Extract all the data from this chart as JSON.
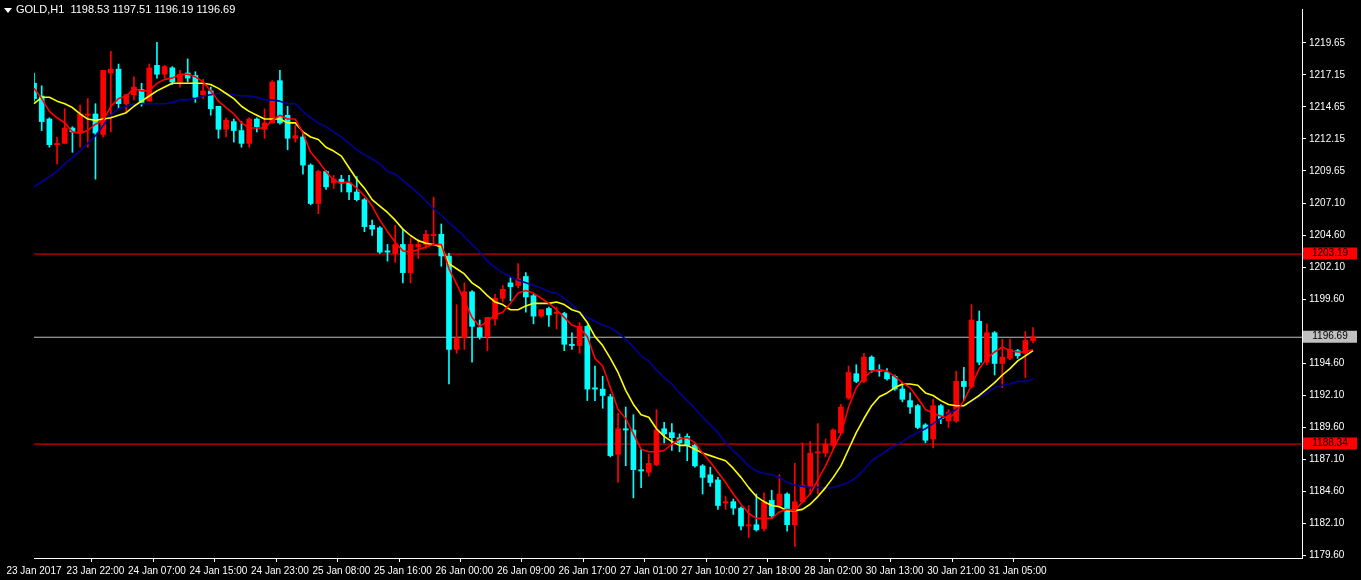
{
  "chart_data": {
    "type": "candlestick",
    "title": "GOLD,H1  1198.53 1197.51 1196.19 1196.69",
    "categories": [
      "23 Jan 2017",
      null,
      null,
      null,
      null,
      null,
      null,
      null,
      "23 Jan 22:00",
      null,
      null,
      null,
      null,
      null,
      null,
      null,
      "24 Jan 07:00",
      null,
      null,
      null,
      null,
      null,
      null,
      null,
      "24 Jan 15:00",
      null,
      null,
      null,
      null,
      null,
      null,
      null,
      "24 Jan 23:00",
      null,
      null,
      null,
      null,
      null,
      null,
      null,
      "25 Jan 08:00",
      null,
      null,
      null,
      null,
      null,
      null,
      null,
      "25 Jan 16:00",
      null,
      null,
      null,
      null,
      null,
      null,
      null,
      "26 Jan 00:00",
      null,
      null,
      null,
      null,
      null,
      null,
      null,
      "26 Jan 09:00",
      null,
      null,
      null,
      null,
      null,
      null,
      null,
      "26 Jan 17:00",
      null,
      null,
      null,
      null,
      null,
      null,
      null,
      "27 Jan 01:00",
      null,
      null,
      null,
      null,
      null,
      null,
      null,
      "27 Jan 10:00",
      null,
      null,
      null,
      null,
      null,
      null,
      null,
      "27 Jan 18:00",
      null,
      null,
      null,
      null,
      null,
      null,
      null,
      "28 Jan 02:00",
      null,
      null,
      null,
      null,
      null,
      null,
      null,
      "30 Jan 13:00",
      null,
      null,
      null,
      null,
      null,
      null,
      null,
      "30 Jan 21:00",
      null,
      null,
      null,
      null,
      null,
      null,
      null,
      "31 Jan 05:00",
      null,
      null,
      null,
      null,
      null,
      null,
      null,
      null,
      null,
      null,
      null,
      null,
      null,
      null,
      null,
      null,
      null,
      null,
      null,
      null,
      null,
      null,
      null,
      null,
      null,
      null,
      null,
      null,
      null,
      null,
      null,
      null,
      null,
      null,
      null,
      null,
      null
    ],
    "ohlc": [
      [
        1216.5,
        1217.3,
        1215.1,
        1215.3
      ],
      [
        1215.5,
        1216.3,
        1212.8,
        1213.5
      ],
      [
        1213.7,
        1213.8,
        1211.5,
        1211.7
      ],
      [
        1211.7,
        1212.3,
        1210.2,
        1211.8
      ],
      [
        1211.8,
        1214.5,
        1211.8,
        1213.0
      ],
      [
        1213.0,
        1213.1,
        1211.1,
        1212.7
      ],
      [
        1212.6,
        1214.8,
        1211.5,
        1214.1
      ],
      [
        1214.0,
        1215.3,
        1211.5,
        1214.1
      ],
      [
        1214.1,
        1214.9,
        1209.0,
        1212.6
      ],
      [
        1212.5,
        1217.5,
        1212.3,
        1217.5
      ],
      [
        1217.3,
        1219.0,
        1212.7,
        1217.6
      ],
      [
        1217.6,
        1218.0,
        1214.5,
        1214.9
      ],
      [
        1214.9,
        1215.6,
        1214.2,
        1215.6
      ],
      [
        1215.6,
        1217.0,
        1215.2,
        1216.2
      ],
      [
        1216.0,
        1216.5,
        1214.7,
        1215.0
      ],
      [
        1215.1,
        1218.0,
        1215.1,
        1217.7
      ],
      [
        1217.9,
        1219.7,
        1216.9,
        1217.2
      ],
      [
        1217.2,
        1217.9,
        1216.9,
        1217.8
      ],
      [
        1217.7,
        1217.8,
        1216.4,
        1216.6
      ],
      [
        1216.6,
        1217.5,
        1216.2,
        1217.2
      ],
      [
        1217.3,
        1218.4,
        1216.6,
        1216.9
      ],
      [
        1217.1,
        1217.4,
        1215.0,
        1215.4
      ],
      [
        1215.6,
        1216.8,
        1215.3,
        1215.9
      ],
      [
        1215.9,
        1216.2,
        1214.0,
        1214.5
      ],
      [
        1214.7,
        1214.7,
        1212.2,
        1212.9
      ],
      [
        1212.9,
        1213.8,
        1212.3,
        1213.6
      ],
      [
        1213.5,
        1213.7,
        1211.9,
        1212.8
      ],
      [
        1212.8,
        1213.5,
        1211.5,
        1211.8
      ],
      [
        1211.8,
        1213.8,
        1211.5,
        1213.7
      ],
      [
        1213.7,
        1213.8,
        1212.7,
        1213.1
      ],
      [
        1212.9,
        1214.5,
        1212.2,
        1213.4
      ],
      [
        1213.4,
        1216.7,
        1213.4,
        1216.6
      ],
      [
        1216.7,
        1217.5,
        1213.3,
        1213.4
      ],
      [
        1214.0,
        1214.7,
        1211.3,
        1212.2
      ],
      [
        1212.2,
        1213.2,
        1211.9,
        1212.4
      ],
      [
        1212.3,
        1212.6,
        1209.4,
        1210.1
      ],
      [
        1210.1,
        1210.2,
        1207.0,
        1207.1
      ],
      [
        1207.1,
        1209.7,
        1206.3,
        1209.6
      ],
      [
        1209.6,
        1209.7,
        1208.2,
        1208.4
      ],
      [
        1208.7,
        1209.3,
        1208.3,
        1209.0
      ],
      [
        1209.0,
        1209.3,
        1208.0,
        1208.7
      ],
      [
        1208.7,
        1209.3,
        1207.4,
        1208.0
      ],
      [
        1208.0,
        1209.2,
        1207.3,
        1207.4
      ],
      [
        1207.4,
        1207.5,
        1204.9,
        1205.3
      ],
      [
        1205.4,
        1205.8,
        1204.6,
        1205.1
      ],
      [
        1205.2,
        1205.3,
        1203.2,
        1203.3
      ],
      [
        1203.4,
        1203.9,
        1202.6,
        1203.3
      ],
      [
        1203.2,
        1205.4,
        1202.5,
        1203.9
      ],
      [
        1203.9,
        1205.1,
        1200.9,
        1201.7
      ],
      [
        1201.7,
        1204.4,
        1200.9,
        1203.9
      ],
      [
        1203.7,
        1204.3,
        1202.8,
        1203.9
      ],
      [
        1203.9,
        1205.0,
        1203.6,
        1204.7
      ],
      [
        1204.6,
        1207.6,
        1203.9,
        1204.7
      ],
      [
        1204.7,
        1205.5,
        1202.2,
        1203.0
      ],
      [
        1203.0,
        1203.2,
        1193.0,
        1195.7
      ],
      [
        1195.7,
        1199.2,
        1195.4,
        1196.6
      ],
      [
        1196.6,
        1200.9,
        1195.7,
        1200.2
      ],
      [
        1200.2,
        1200.3,
        1194.7,
        1197.5
      ],
      [
        1197.4,
        1198.0,
        1196.5,
        1196.7
      ],
      [
        1196.7,
        1198.2,
        1195.6,
        1198.2
      ],
      [
        1198.1,
        1200.0,
        1197.6,
        1199.7
      ],
      [
        1199.7,
        1200.7,
        1199.4,
        1200.4
      ],
      [
        1200.9,
        1201.3,
        1199.5,
        1200.6
      ],
      [
        1200.7,
        1202.4,
        1200.5,
        1201.2
      ],
      [
        1201.4,
        1201.7,
        1198.6,
        1199.8
      ],
      [
        1199.9,
        1200.0,
        1197.7,
        1198.3
      ],
      [
        1198.3,
        1198.8,
        1198.2,
        1198.8
      ],
      [
        1198.9,
        1199.0,
        1197.5,
        1198.4
      ],
      [
        1198.5,
        1199.0,
        1197.3,
        1198.6
      ],
      [
        1198.5,
        1198.6,
        1195.6,
        1196.1
      ],
      [
        1196.1,
        1197.0,
        1195.7,
        1196.0
      ],
      [
        1196.0,
        1197.8,
        1195.4,
        1197.5
      ],
      [
        1197.5,
        1197.6,
        1191.7,
        1192.6
      ],
      [
        1192.7,
        1194.4,
        1191.7,
        1192.6
      ],
      [
        1192.6,
        1193.6,
        1191.1,
        1192.1
      ],
      [
        1192.0,
        1192.2,
        1187.3,
        1187.4
      ],
      [
        1187.5,
        1190.7,
        1185.3,
        1189.5
      ],
      [
        1189.5,
        1191.2,
        1186.6,
        1189.4
      ],
      [
        1189.4,
        1190.6,
        1184.1,
        1186.3
      ],
      [
        1186.3,
        1187.9,
        1184.9,
        1186.2
      ],
      [
        1186.1,
        1187.5,
        1185.8,
        1186.8
      ],
      [
        1186.7,
        1191.0,
        1186.6,
        1189.4
      ],
      [
        1189.5,
        1190.0,
        1188.4,
        1189.1
      ],
      [
        1189.2,
        1189.9,
        1187.8,
        1188.8
      ],
      [
        1188.8,
        1189.1,
        1187.7,
        1188.4
      ],
      [
        1188.9,
        1189.1,
        1187.0,
        1188.2
      ],
      [
        1188.2,
        1188.3,
        1186.5,
        1186.6
      ],
      [
        1186.6,
        1186.7,
        1184.4,
        1185.7
      ],
      [
        1185.9,
        1186.5,
        1185.0,
        1185.3
      ],
      [
        1185.5,
        1185.7,
        1183.2,
        1183.5
      ],
      [
        1183.7,
        1184.2,
        1183.2,
        1183.8
      ],
      [
        1183.8,
        1184.0,
        1182.8,
        1183.3
      ],
      [
        1183.3,
        1183.4,
        1181.6,
        1181.9
      ],
      [
        1181.9,
        1183.5,
        1181.0,
        1182.0
      ],
      [
        1182.0,
        1184.4,
        1181.5,
        1181.6
      ],
      [
        1181.7,
        1184.5,
        1181.5,
        1183.8
      ],
      [
        1183.9,
        1184.7,
        1182.5,
        1182.7
      ],
      [
        1183.5,
        1185.9,
        1183.3,
        1184.4
      ],
      [
        1184.4,
        1184.5,
        1181.5,
        1182.0
      ],
      [
        1182.0,
        1186.8,
        1180.3,
        1183.8
      ],
      [
        1183.8,
        1188.4,
        1183.7,
        1185.1
      ],
      [
        1185.0,
        1188.5,
        1184.4,
        1187.6
      ],
      [
        1187.6,
        1189.9,
        1184.4,
        1187.7
      ],
      [
        1187.6,
        1188.7,
        1187.3,
        1188.3
      ],
      [
        1188.2,
        1189.5,
        1187.9,
        1189.4
      ],
      [
        1189.2,
        1191.4,
        1189.1,
        1191.2
      ],
      [
        1191.9,
        1194.4,
        1191.8,
        1193.9
      ],
      [
        1193.8,
        1194.5,
        1193.1,
        1193.2
      ],
      [
        1193.2,
        1195.4,
        1193.1,
        1195.1
      ],
      [
        1195.1,
        1195.2,
        1193.9,
        1194.1
      ],
      [
        1194.1,
        1194.5,
        1193.6,
        1194.0
      ],
      [
        1193.9,
        1194.2,
        1193.3,
        1193.4
      ],
      [
        1193.6,
        1193.7,
        1192.5,
        1192.6
      ],
      [
        1192.6,
        1193.0,
        1191.6,
        1191.8
      ],
      [
        1191.7,
        1192.3,
        1190.7,
        1191.2
      ],
      [
        1191.3,
        1191.4,
        1189.5,
        1189.6
      ],
      [
        1189.8,
        1189.9,
        1188.4,
        1188.6
      ],
      [
        1188.7,
        1191.8,
        1188.0,
        1191.3
      ],
      [
        1191.3,
        1191.4,
        1189.9,
        1190.3
      ],
      [
        1190.1,
        1191.0,
        1189.6,
        1190.8
      ],
      [
        1190.1,
        1194.0,
        1190.0,
        1193.2
      ],
      [
        1193.2,
        1194.3,
        1191.7,
        1192.8
      ],
      [
        1192.8,
        1199.2,
        1192.7,
        1198.0
      ],
      [
        1197.9,
        1198.7,
        1194.5,
        1194.7
      ],
      [
        1194.7,
        1197.7,
        1194.5,
        1197.0
      ],
      [
        1197.0,
        1197.1,
        1193.7,
        1194.6
      ],
      [
        1194.6,
        1196.5,
        1192.7,
        1195.1
      ],
      [
        1195.0,
        1196.5,
        1194.9,
        1195.7
      ],
      [
        1195.6,
        1195.7,
        1195.0,
        1195.2
      ],
      [
        1195.4,
        1197.1,
        1193.5,
        1196.4
      ],
      [
        1196.4,
        1197.4,
        1196.2,
        1196.7
      ],
      null,
      null,
      null,
      null,
      null,
      null,
      null,
      null,
      null,
      null,
      null,
      null,
      null,
      null,
      null,
      null,
      null,
      null,
      null,
      null,
      null,
      null,
      null,
      null,
      null,
      null,
      null,
      null,
      null,
      null,
      null,
      null,
      null,
      null,
      null
    ],
    "colors": [
      "#00ffff",
      "#00ffff",
      "#00ffff",
      "#ff0000",
      "#ff0000",
      "#00ffff",
      "#ff0000",
      "#ff0000",
      "#00ffff",
      "#ff0000",
      "#ff0000",
      "#00ffff",
      "#ff0000",
      "#ff0000",
      "#00ffff",
      "#ff0000",
      "#00ffff",
      "#ff0000",
      "#00ffff",
      "#ff0000",
      "#00ffff",
      "#00ffff",
      "#ff0000",
      "#00ffff",
      "#00ffff",
      "#ff0000",
      "#00ffff",
      "#00ffff",
      "#ff0000",
      "#00ffff",
      "#ff0000",
      "#ff0000",
      "#00ffff",
      "#00ffff",
      "#ff0000",
      "#00ffff",
      "#00ffff",
      "#ff0000",
      "#00ffff",
      "#ff0000",
      "#00ffff",
      "#00ffff",
      "#00ffff",
      "#00ffff",
      "#00ffff",
      "#00ffff",
      "#00ffff",
      "#ff0000",
      "#00ffff",
      "#ff0000",
      "#ff0000",
      "#ff0000",
      "#ff0000",
      "#00ffff",
      "#00ffff",
      "#ff0000",
      "#ff0000",
      "#00ffff",
      "#00ffff",
      "#ff0000",
      "#ff0000",
      "#ff0000",
      "#00ffff",
      "#ff0000",
      "#00ffff",
      "#00ffff",
      "#ff0000",
      "#00ffff",
      "#ff0000",
      "#00ffff",
      "#00ffff",
      "#ff0000",
      "#00ffff",
      "#00ffff",
      "#00ffff",
      "#00ffff",
      "#ff0000",
      "#00ffff",
      "#00ffff",
      "#00ffff",
      "#ff0000",
      "#ff0000",
      "#00ffff",
      "#00ffff",
      "#00ffff",
      "#00ffff",
      "#00ffff",
      "#00ffff",
      "#00ffff",
      "#00ffff",
      "#ff0000",
      "#00ffff",
      "#00ffff",
      "#ff0000",
      "#00ffff",
      "#ff0000",
      "#00ffff",
      "#ff0000",
      "#00ffff",
      "#ff0000",
      "#ff0000",
      "#ff0000",
      "#ff0000",
      "#ff0000",
      "#ff0000",
      "#ff0000",
      "#ff0000",
      "#00ffff",
      "#ff0000",
      "#00ffff",
      "#00ffff",
      "#00ffff",
      "#00ffff",
      "#00ffff",
      "#00ffff",
      "#00ffff",
      "#00ffff",
      "#ff0000",
      "#00ffff",
      "#ff0000",
      "#ff0000",
      "#00ffff",
      "#ff0000",
      "#00ffff",
      "#ff0000",
      "#00ffff",
      "#ff0000",
      "#ff0000",
      "#00ffff",
      "#ff0000",
      "#ff0000",
      null,
      null,
      null,
      null,
      null,
      null,
      null,
      null,
      null,
      null,
      null,
      null,
      null,
      null,
      null,
      null,
      null,
      null,
      null,
      null,
      null,
      null,
      null,
      null,
      null,
      null,
      null,
      null,
      null,
      null,
      null,
      null,
      null,
      null,
      null
    ],
    "series": [
      {
        "type": "line",
        "color": "#ff0000",
        "values": [
          1216.1,
          1215.3,
          1214.3,
          1213.8,
          1213.4,
          1212.7,
          1212.6,
          1212.8,
          1213.3,
          1213.6,
          1214.7,
          1215.3,
          1215.5,
          1216.1,
          1215.9,
          1215.9,
          1216.5,
          1216.8,
          1216.9,
          1217.2,
          1217.2,
          1217.0,
          1216.6,
          1215.9,
          1215.1,
          1214.6,
          1214.1,
          1213.4,
          1213.0,
          1213.0,
          1213.0,
          1213.6,
          1214.0,
          1213.7,
          1213.7,
          1212.6,
          1211.1,
          1210.4,
          1209.6,
          1208.9,
          1208.7,
          1208.8,
          1208.3,
          1207.7,
          1206.9,
          1205.8,
          1204.9,
          1204.1,
          1203.4,
          1203.3,
          1203.5,
          1203.7,
          1203.9,
          1203.9,
          1202.0,
          1200.8,
          1199.5,
          1198.2,
          1197.5,
          1197.9,
          1198.4,
          1198.6,
          1199.3,
          1200.1,
          1200.3,
          1200.1,
          1199.7,
          1199.3,
          1198.8,
          1198.2,
          1197.6,
          1197.4,
          1196.7,
          1195.0,
          1194.4,
          1192.7,
          1191.0,
          1190.3,
          1189.1,
          1187.9,
          1187.7,
          1187.7,
          1187.8,
          1188.3,
          1188.7,
          1188.8,
          1188.4,
          1187.6,
          1186.9,
          1186.1,
          1185.3,
          1184.4,
          1183.6,
          1182.9,
          1182.5,
          1182.5,
          1182.5,
          1183.0,
          1183.2,
          1183.1,
          1183.8,
          1184.4,
          1185.5,
          1186.6,
          1187.9,
          1189.1,
          1191.2,
          1192.7,
          1193.5,
          1194.0,
          1194.1,
          1194.0,
          1193.6,
          1193.1,
          1192.7,
          1191.9,
          1191.0,
          1190.7,
          1190.5,
          1190.3,
          1190.8,
          1191.7,
          1192.9,
          1194.2,
          1195.0,
          1195.5,
          1195.9,
          1195.6,
          1195.5,
          1195.5,
          1195.7,
          null,
          null,
          null,
          null,
          null,
          null,
          null,
          null,
          null,
          null,
          null,
          null,
          null,
          null,
          null,
          null,
          null,
          null,
          null,
          null,
          null,
          null,
          null,
          null,
          null,
          null,
          null,
          null,
          null,
          null,
          null,
          null,
          null,
          null,
          null
        ]
      },
      {
        "type": "line",
        "color": "#ffff00",
        "values": [
          1214.9,
          1215.4,
          1215.4,
          1215.1,
          1214.9,
          1214.6,
          1214.1,
          1213.7,
          1213.6,
          1213.7,
          1213.8,
          1214.0,
          1214.2,
          1214.7,
          1215.1,
          1215.5,
          1215.9,
          1216.2,
          1216.5,
          1216.5,
          1216.5,
          1216.5,
          1216.5,
          1216.4,
          1216.1,
          1215.7,
          1215.3,
          1214.7,
          1214.3,
          1214.0,
          1213.7,
          1213.7,
          1213.7,
          1213.4,
          1213.4,
          1212.7,
          1212.3,
          1212.1,
          1211.5,
          1211.2,
          1210.8,
          1209.9,
          1209.0,
          1208.3,
          1207.4,
          1206.9,
          1206.4,
          1205.8,
          1205.1,
          1204.6,
          1204.2,
          1204.0,
          1203.9,
          1203.7,
          1202.4,
          1202.0,
          1201.6,
          1200.9,
          1200.5,
          1199.9,
          1199.4,
          1199.2,
          1198.8,
          1198.8,
          1199.1,
          1199.3,
          1199.3,
          1199.3,
          1199.4,
          1199.2,
          1198.8,
          1198.6,
          1197.8,
          1196.7,
          1196.0,
          1195.0,
          1193.9,
          1192.5,
          1191.4,
          1190.6,
          1190.4,
          1189.5,
          1188.9,
          1188.5,
          1188.2,
          1188.2,
          1187.9,
          1187.6,
          1187.4,
          1187.2,
          1187.0,
          1186.4,
          1185.7,
          1184.9,
          1184.2,
          1183.8,
          1183.5,
          1183.4,
          1183.1,
          1183.1,
          1183.2,
          1183.6,
          1184.2,
          1184.9,
          1185.7,
          1186.6,
          1187.9,
          1189.2,
          1190.3,
          1191.3,
          1192.0,
          1192.3,
          1192.7,
          1193.0,
          1193.0,
          1192.9,
          1192.3,
          1192.1,
          1191.7,
          1191.4,
          1191.3,
          1191.3,
          1191.7,
          1192.1,
          1192.6,
          1193.1,
          1193.7,
          1194.2,
          1194.8,
          1195.2,
          1195.6,
          null,
          null,
          null,
          null,
          null,
          null,
          null,
          null,
          null,
          null,
          null,
          null,
          null,
          null,
          null,
          null,
          null,
          null,
          null,
          null,
          null,
          null,
          null,
          null,
          null,
          null,
          null,
          null,
          null,
          null,
          null,
          null,
          null,
          null,
          null
        ]
      },
      {
        "type": "line",
        "color": "#000099",
        "values": [
          1208.4,
          1208.8,
          1209.2,
          1209.6,
          1210.2,
          1210.7,
          1211.2,
          1211.8,
          1212.4,
          1213.2,
          1214.0,
          1214.5,
          1214.7,
          1214.9,
          1214.9,
          1214.9,
          1214.9,
          1214.9,
          1215.0,
          1215.2,
          1215.2,
          1215.3,
          1215.5,
          1215.6,
          1215.7,
          1215.7,
          1215.6,
          1215.5,
          1215.5,
          1215.4,
          1215.2,
          1215.2,
          1215.1,
          1214.9,
          1214.9,
          1214.3,
          1213.8,
          1213.4,
          1213.1,
          1212.7,
          1212.3,
          1211.8,
          1211.3,
          1210.9,
          1210.6,
          1210.2,
          1209.6,
          1209.4,
          1208.9,
          1208.4,
          1207.9,
          1207.3,
          1206.7,
          1206.2,
          1205.6,
          1205.1,
          1204.5,
          1203.9,
          1203.3,
          1202.6,
          1202.1,
          1201.7,
          1201.4,
          1201.1,
          1200.9,
          1200.7,
          1200.5,
          1200.2,
          1200.1,
          1199.7,
          1199.2,
          1198.6,
          1198.2,
          1197.9,
          1197.6,
          1197.4,
          1197.0,
          1196.5,
          1195.9,
          1195.2,
          1194.8,
          1194.1,
          1193.5,
          1193.0,
          1192.3,
          1191.7,
          1191.1,
          1190.4,
          1189.8,
          1189.2,
          1188.4,
          1187.8,
          1187.2,
          1186.6,
          1186.2,
          1186.0,
          1185.9,
          1185.7,
          1185.3,
          1185.1,
          1185.0,
          1184.9,
          1184.9,
          1184.9,
          1184.9,
          1185.1,
          1185.3,
          1185.7,
          1186.3,
          1187.0,
          1187.4,
          1187.8,
          1188.2,
          1188.5,
          1188.9,
          1189.2,
          1189.5,
          1189.9,
          1190.3,
          1190.7,
          1191.0,
          1191.3,
          1191.6,
          1192.0,
          1192.3,
          1192.7,
          1192.9,
          1193.0,
          1193.2,
          1193.2,
          1193.4,
          null,
          null,
          null,
          null,
          null,
          null,
          null,
          null,
          null,
          null,
          null,
          null,
          null,
          null,
          null,
          null,
          null,
          null,
          null,
          null,
          null,
          null,
          null,
          null,
          null,
          null,
          null,
          null,
          null,
          null,
          null,
          null,
          null,
          null,
          null
        ]
      }
    ],
    "ylim": [
      1179.4,
      1222.3
    ],
    "yticks": [
      {
        "value": 1179.6,
        "label": "1179.60"
      },
      {
        "value": 1182.1,
        "label": "1182.10"
      },
      {
        "value": 1184.6,
        "label": "1184.60"
      },
      {
        "value": 1187.1,
        "label": "1187.10"
      },
      {
        "value": 1189.6,
        "label": "1189.60"
      },
      {
        "value": 1192.1,
        "label": "1192.10"
      },
      {
        "value": 1194.6,
        "label": "1194.60"
      },
      {
        "value": 1197.1,
        "label": null
      },
      {
        "value": 1199.6,
        "label": "1199.60"
      },
      {
        "value": 1202.1,
        "label": "1202.10"
      },
      {
        "value": 1204.6,
        "label": "1204.60"
      },
      {
        "value": 1207.1,
        "label": "1207.10"
      },
      {
        "value": 1209.65,
        "label": "1209.65"
      },
      {
        "value": 1212.15,
        "label": "1212.15"
      },
      {
        "value": 1214.65,
        "label": "1214.65"
      },
      {
        "value": 1217.15,
        "label": "1217.15"
      },
      {
        "value": 1219.65,
        "label": "1219.65"
      }
    ],
    "ref_lines": [
      {
        "axis": "y",
        "value": 1203.19,
        "label": "1203.19",
        "color": "#ff0000"
      },
      {
        "axis": "y",
        "value": 1196.69,
        "label": "1196.69",
        "color": "#c0c0c0"
      },
      {
        "axis": "y",
        "value": 1188.34,
        "label": "1188.34",
        "color": "#ff0000"
      }
    ]
  }
}
